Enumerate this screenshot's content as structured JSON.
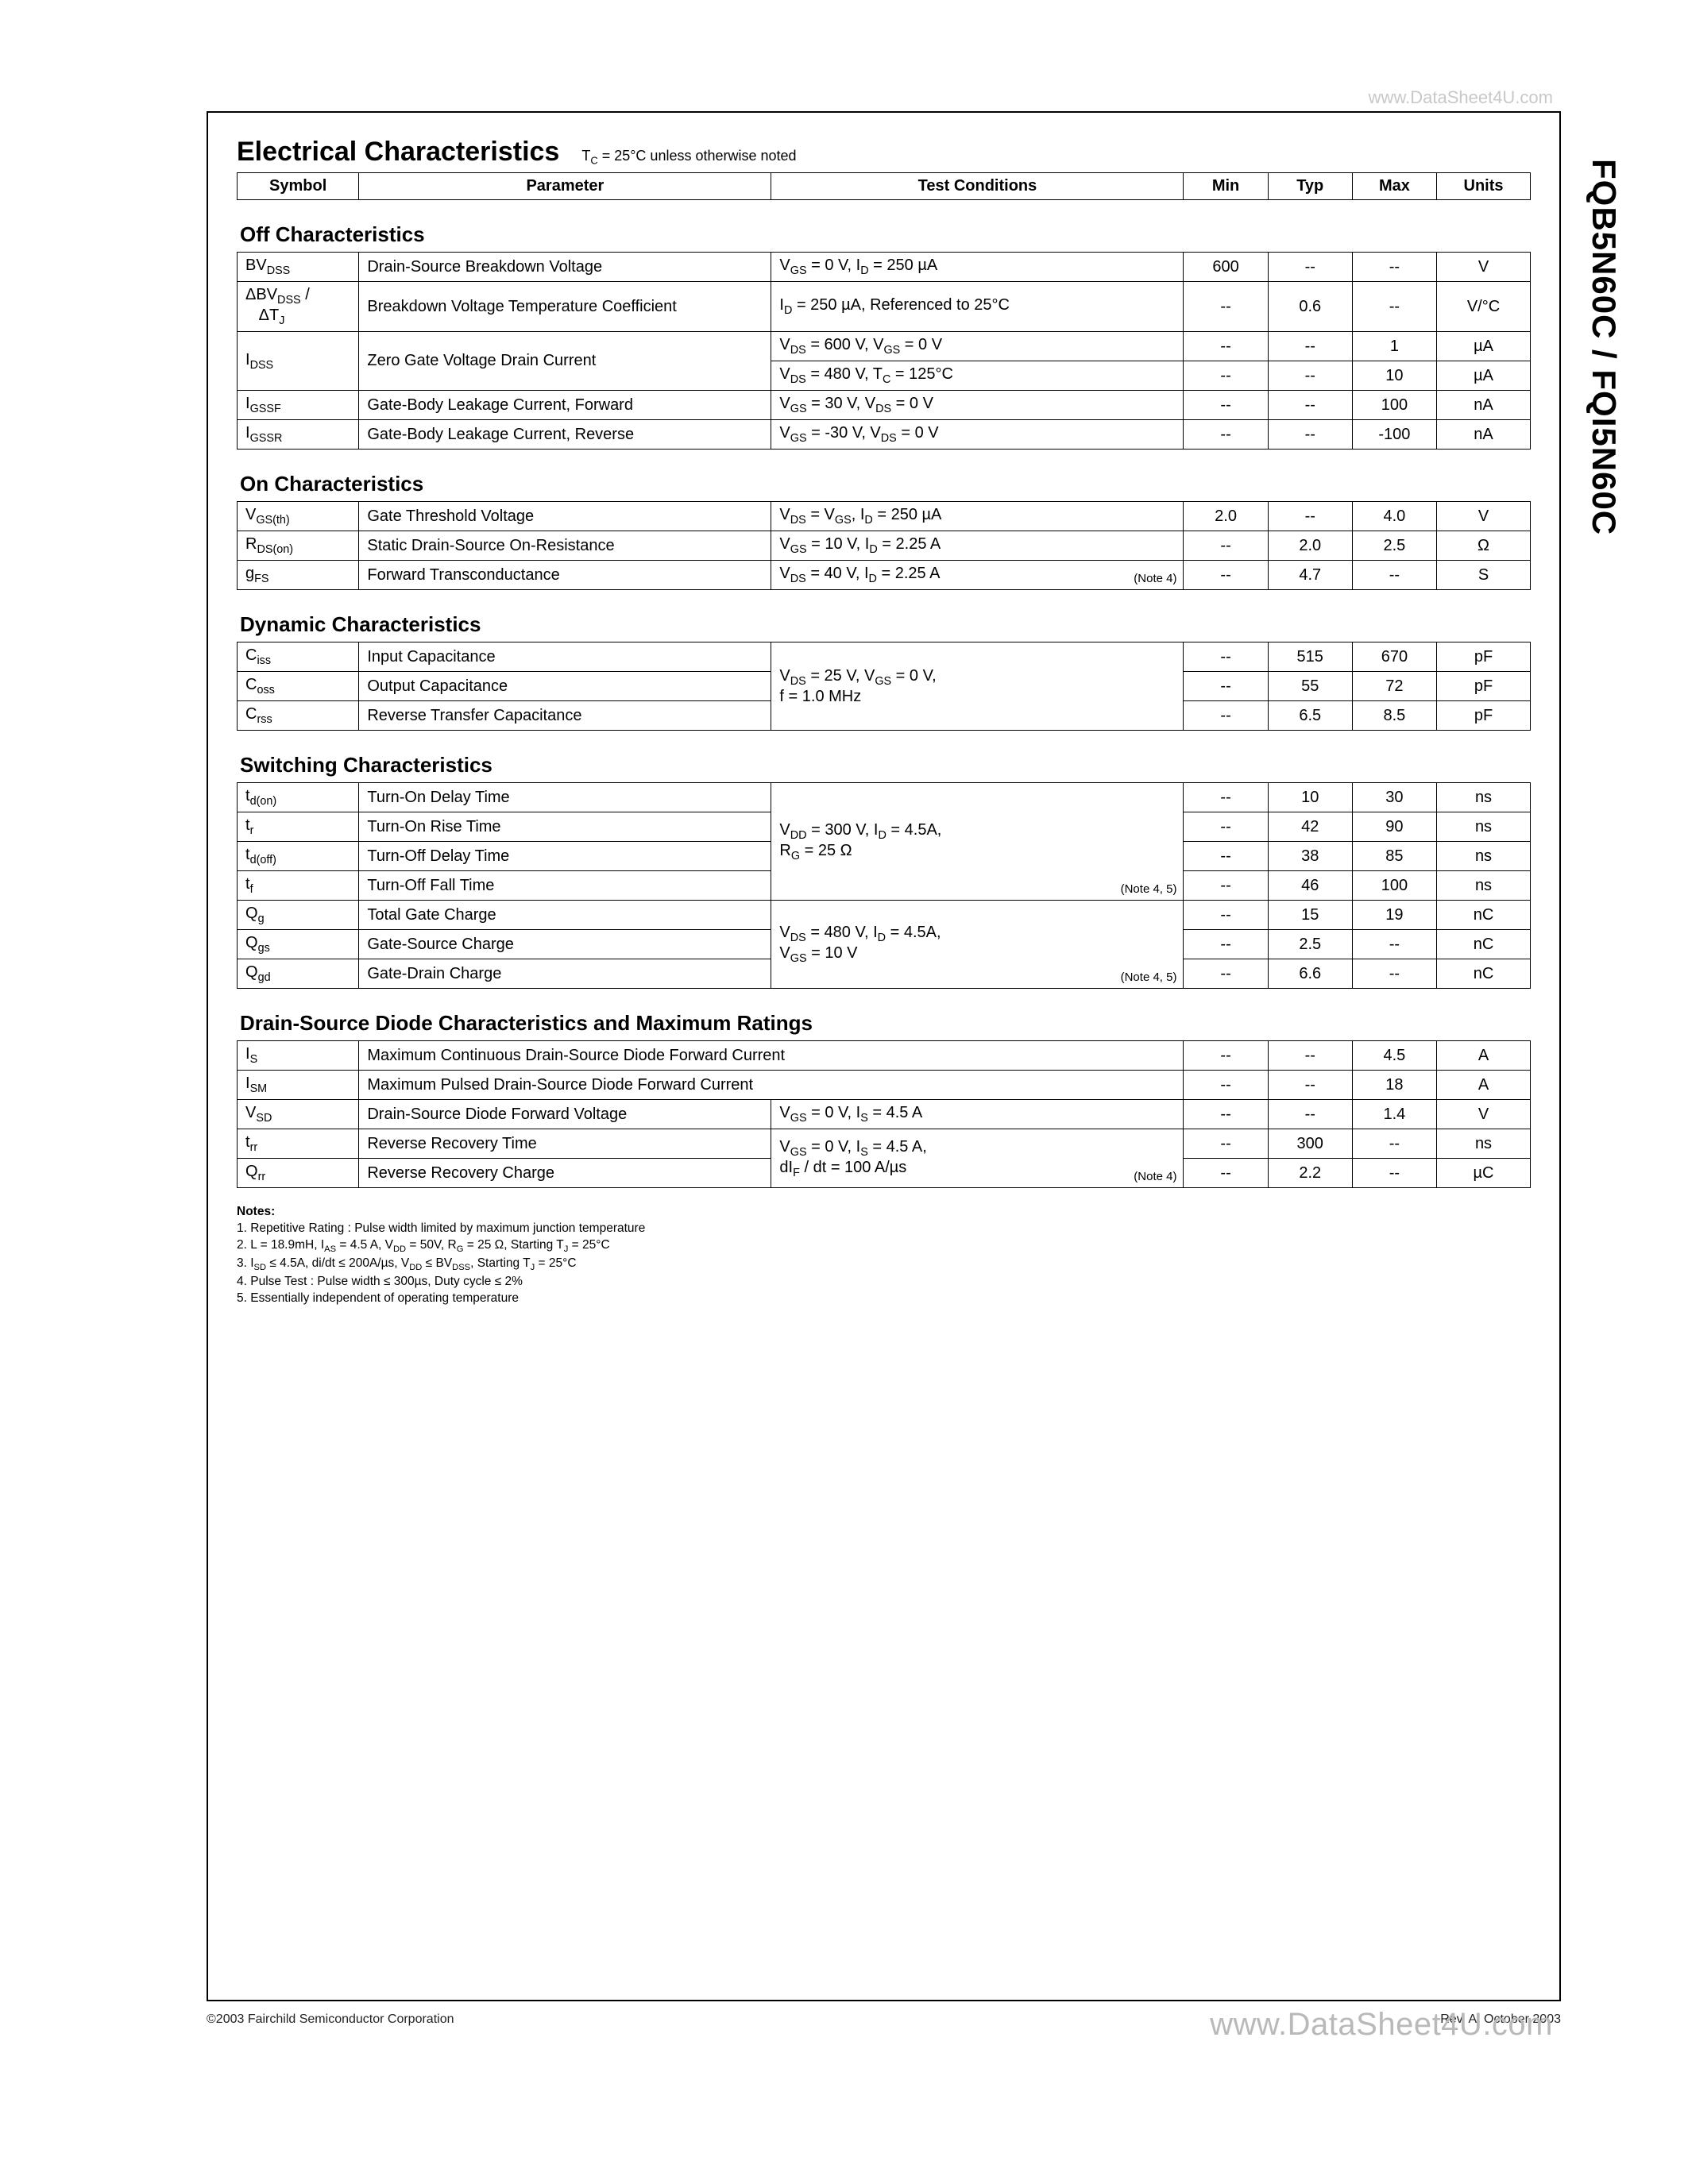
{
  "watermark_top": "www.DataSheet4U.com",
  "watermark_bottom": "www.DataSheet4U.com",
  "part_number": "FQB5N60C / FQI5N60C",
  "main_title": "Electrical Characteristics",
  "tc_note": "T_C = 25°C unless otherwise noted",
  "header": {
    "symbol": "Symbol",
    "parameter": "Parameter",
    "conditions": "Test Conditions",
    "min": "Min",
    "typ": "Typ",
    "max": "Max",
    "units": "Units"
  },
  "sections": {
    "off": {
      "title": "Off Characteristics",
      "rows": [
        {
          "sym": "BV<sub>DSS</sub>",
          "param": "Drain-Source Breakdown Voltage",
          "cond": "V<sub>GS</sub> = 0 V, I<sub>D</sub> = 250 µA",
          "min": "600",
          "typ": "--",
          "max": "--",
          "units": "V"
        },
        {
          "sym": "ΔBV<sub>DSS</sub> / &nbsp;&nbsp;&nbsp;ΔT<sub>J</sub>",
          "param": "Breakdown Voltage Temperature Coefficient",
          "cond": "I<sub>D</sub> = 250 µA, Referenced to 25°C",
          "min": "--",
          "typ": "0.6",
          "max": "--",
          "units": "V/°C"
        },
        {
          "sym": "I<sub>DSS</sub>",
          "param": "Zero Gate Voltage Drain Current",
          "cond": "V<sub>DS</sub> = 600 V, V<sub>GS</sub> = 0 V",
          "min": "--",
          "typ": "--",
          "max": "1",
          "units": "µA",
          "rowspan_param": 2
        },
        {
          "sym_skip": true,
          "param_skip": true,
          "cond": "V<sub>DS</sub> = 480 V, T<sub>C</sub> = 125°C",
          "min": "--",
          "typ": "--",
          "max": "10",
          "units": "µA"
        },
        {
          "sym": "I<sub>GSSF</sub>",
          "param": "Gate-Body Leakage Current, Forward",
          "cond": "V<sub>GS</sub> = 30 V, V<sub>DS</sub> = 0 V",
          "min": "--",
          "typ": "--",
          "max": "100",
          "units": "nA"
        },
        {
          "sym": "I<sub>GSSR</sub>",
          "param": "Gate-Body Leakage Current, Reverse",
          "cond": "V<sub>GS</sub> = -30 V, V<sub>DS</sub> = 0 V",
          "min": "--",
          "typ": "--",
          "max": "-100",
          "units": "nA"
        }
      ]
    },
    "on": {
      "title": "On Characteristics",
      "rows": [
        {
          "sym": "V<sub>GS(th)</sub>",
          "param": "Gate Threshold Voltage",
          "cond": "V<sub>DS</sub> = V<sub>GS</sub>, I<sub>D</sub> = 250 µA",
          "min": "2.0",
          "typ": "--",
          "max": "4.0",
          "units": "V"
        },
        {
          "sym": "R<sub>DS(on)</sub>",
          "param": "Static Drain-Source On-Resistance",
          "cond": "V<sub>GS</sub> = 10 V, I<sub>D</sub> = 2.25 A",
          "min": "--",
          "typ": "2.0",
          "max": "2.5",
          "units": "Ω"
        },
        {
          "sym": "g<sub>FS</sub>",
          "param": "Forward Transconductance",
          "cond": "V<sub>DS</sub> = 40 V, I<sub>D</sub> = 2.25 A",
          "note": "(Note 4)",
          "min": "--",
          "typ": "4.7",
          "max": "--",
          "units": "S"
        }
      ]
    },
    "dyn": {
      "title": "Dynamic Characteristics",
      "rows": [
        {
          "sym": "C<sub>iss</sub>",
          "param": "Input Capacitance",
          "cond": "V<sub>DS</sub> = 25 V, V<sub>GS</sub> = 0 V,<br>f = 1.0 MHz",
          "cond_rowspan": 3,
          "min": "--",
          "typ": "515",
          "max": "670",
          "units": "pF"
        },
        {
          "sym": "C<sub>oss</sub>",
          "param": "Output Capacitance",
          "cond_skip": true,
          "min": "--",
          "typ": "55",
          "max": "72",
          "units": "pF"
        },
        {
          "sym": "C<sub>rss</sub>",
          "param": "Reverse Transfer Capacitance",
          "cond_skip": true,
          "min": "--",
          "typ": "6.5",
          "max": "8.5",
          "units": "pF"
        }
      ]
    },
    "sw": {
      "title": "Switching Characteristics",
      "rows": [
        {
          "sym": "t<sub>d(on)</sub>",
          "param": "Turn-On Delay Time",
          "cond": "V<sub>DD</sub> = 300 V, I<sub>D</sub> = 4.5A,<br>R<sub>G</sub> = 25 Ω",
          "cond_rowspan": 4,
          "min": "--",
          "typ": "10",
          "max": "30",
          "units": "ns"
        },
        {
          "sym": "t<sub>r</sub>",
          "param": "Turn-On Rise Time",
          "cond_skip": true,
          "min": "--",
          "typ": "42",
          "max": "90",
          "units": "ns"
        },
        {
          "sym": "t<sub>d(off)</sub>",
          "param": "Turn-Off Delay Time",
          "cond_skip": true,
          "min": "--",
          "typ": "38",
          "max": "85",
          "units": "ns"
        },
        {
          "sym": "t<sub>f</sub>",
          "param": "Turn-Off Fall Time",
          "cond_skip": true,
          "note_on_span": "(Note 4, 5)",
          "min": "--",
          "typ": "46",
          "max": "100",
          "units": "ns"
        },
        {
          "sym": "Q<sub>g</sub>",
          "param": "Total Gate Charge",
          "cond": "V<sub>DS</sub> = 480 V, I<sub>D</sub> = 4.5A,<br>V<sub>GS</sub> = 10 V",
          "cond_rowspan": 3,
          "min": "--",
          "typ": "15",
          "max": "19",
          "units": "nC"
        },
        {
          "sym": "Q<sub>gs</sub>",
          "param": "Gate-Source Charge",
          "cond_skip": true,
          "min": "--",
          "typ": "2.5",
          "max": "--",
          "units": "nC"
        },
        {
          "sym": "Q<sub>gd</sub>",
          "param": "Gate-Drain Charge",
          "cond_skip": true,
          "note_on_span": "(Note 4, 5)",
          "min": "--",
          "typ": "6.6",
          "max": "--",
          "units": "nC"
        }
      ]
    },
    "diode": {
      "title": "Drain-Source Diode Characteristics and Maximum Ratings",
      "rows": [
        {
          "sym": "I<sub>S</sub>",
          "param": "Maximum Continuous Drain-Source Diode Forward Current",
          "cond_merge": true,
          "min": "--",
          "typ": "--",
          "max": "4.5",
          "units": "A"
        },
        {
          "sym": "I<sub>SM</sub>",
          "param": "Maximum Pulsed Drain-Source Diode Forward Current",
          "cond_merge": true,
          "min": "--",
          "typ": "--",
          "max": "18",
          "units": "A"
        },
        {
          "sym": "V<sub>SD</sub>",
          "param": "Drain-Source Diode Forward Voltage",
          "cond": "V<sub>GS</sub> = 0 V, I<sub>S</sub> = 4.5 A",
          "min": "--",
          "typ": "--",
          "max": "1.4",
          "units": "V"
        },
        {
          "sym": "t<sub>rr</sub>",
          "param": "Reverse Recovery Time",
          "cond": "V<sub>GS</sub> = 0 V, I<sub>S</sub> = 4.5 A,<br>dI<sub>F</sub> / dt = 100 A/µs",
          "cond_rowspan": 2,
          "min": "--",
          "typ": "300",
          "max": "--",
          "units": "ns"
        },
        {
          "sym": "Q<sub>rr</sub>",
          "param": "Reverse Recovery Charge",
          "cond_skip": true,
          "note_on_span": "(Note 4)",
          "min": "--",
          "typ": "2.2",
          "max": "--",
          "units": "µC"
        }
      ]
    }
  },
  "notes": {
    "heading": "Notes:",
    "items": [
      "1. Repetitive Rating : Pulse width limited by maximum junction temperature",
      "2. L = 18.9mH, I_AS = 4.5 A, V_DD = 50V, R_G = 25 Ω, Starting T_J = 25°C",
      "3. I_SD ≤ 4.5A, di/dt ≤ 200A/µs, V_DD ≤ BV_DSS, Starting T_J = 25°C",
      "4. Pulse Test : Pulse width ≤ 300µs, Duty cycle ≤ 2%",
      "5. Essentially independent of operating temperature"
    ]
  },
  "footer": {
    "left": "©2003 Fairchild Semiconductor Corporation",
    "right": "Rev. A, October 2003"
  }
}
